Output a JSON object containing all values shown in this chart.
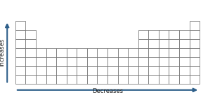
{
  "bg_color": "#ffffff",
  "grid_color": "#666666",
  "arrow_color": "#2e5f8a",
  "cell_linewidth": 0.5,
  "label_increases": "Increases",
  "label_decreases": "Decreases",
  "label_fontsize": 6.0,
  "label_color": "#222222",
  "figsize": [
    3.06,
    1.36
  ],
  "dpi": 100,
  "periodic_table_cells": [
    [
      1,
      1
    ],
    [
      1,
      18
    ],
    [
      2,
      1
    ],
    [
      2,
      2
    ],
    [
      2,
      13
    ],
    [
      2,
      14
    ],
    [
      2,
      15
    ],
    [
      2,
      16
    ],
    [
      2,
      17
    ],
    [
      2,
      18
    ],
    [
      3,
      1
    ],
    [
      3,
      2
    ],
    [
      3,
      13
    ],
    [
      3,
      14
    ],
    [
      3,
      15
    ],
    [
      3,
      16
    ],
    [
      3,
      17
    ],
    [
      3,
      18
    ],
    [
      4,
      1
    ],
    [
      4,
      2
    ],
    [
      4,
      3
    ],
    [
      4,
      4
    ],
    [
      4,
      5
    ],
    [
      4,
      6
    ],
    [
      4,
      7
    ],
    [
      4,
      8
    ],
    [
      4,
      9
    ],
    [
      4,
      10
    ],
    [
      4,
      11
    ],
    [
      4,
      12
    ],
    [
      4,
      13
    ],
    [
      4,
      14
    ],
    [
      4,
      15
    ],
    [
      4,
      16
    ],
    [
      4,
      17
    ],
    [
      4,
      18
    ],
    [
      5,
      1
    ],
    [
      5,
      2
    ],
    [
      5,
      3
    ],
    [
      5,
      4
    ],
    [
      5,
      5
    ],
    [
      5,
      6
    ],
    [
      5,
      7
    ],
    [
      5,
      8
    ],
    [
      5,
      9
    ],
    [
      5,
      10
    ],
    [
      5,
      11
    ],
    [
      5,
      12
    ],
    [
      5,
      13
    ],
    [
      5,
      14
    ],
    [
      5,
      15
    ],
    [
      5,
      16
    ],
    [
      5,
      17
    ],
    [
      5,
      18
    ],
    [
      6,
      1
    ],
    [
      6,
      2
    ],
    [
      6,
      3
    ],
    [
      6,
      4
    ],
    [
      6,
      5
    ],
    [
      6,
      6
    ],
    [
      6,
      7
    ],
    [
      6,
      8
    ],
    [
      6,
      9
    ],
    [
      6,
      10
    ],
    [
      6,
      11
    ],
    [
      6,
      12
    ],
    [
      6,
      13
    ],
    [
      6,
      14
    ],
    [
      6,
      15
    ],
    [
      6,
      16
    ],
    [
      6,
      17
    ],
    [
      6,
      18
    ],
    [
      7,
      1
    ],
    [
      7,
      2
    ],
    [
      7,
      3
    ],
    [
      7,
      4
    ],
    [
      7,
      5
    ],
    [
      7,
      6
    ],
    [
      7,
      7
    ],
    [
      7,
      8
    ],
    [
      7,
      9
    ],
    [
      7,
      10
    ],
    [
      7,
      11
    ],
    [
      7,
      12
    ],
    [
      7,
      13
    ],
    [
      7,
      14
    ],
    [
      7,
      15
    ],
    [
      7,
      16
    ],
    [
      7,
      17
    ],
    [
      7,
      18
    ]
  ]
}
